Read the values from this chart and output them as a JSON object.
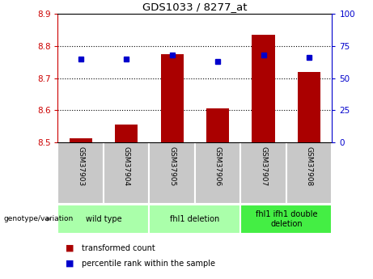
{
  "title": "GDS1033 / 8277_at",
  "samples": [
    "GSM37903",
    "GSM37904",
    "GSM37905",
    "GSM37906",
    "GSM37907",
    "GSM37908"
  ],
  "transformed_count": [
    8.513,
    8.555,
    8.775,
    8.605,
    8.835,
    8.72
  ],
  "percentile_rank": [
    65,
    65,
    68,
    63,
    68,
    66
  ],
  "ylim_left": [
    8.5,
    8.9
  ],
  "ylim_right": [
    0,
    100
  ],
  "yticks_left": [
    8.5,
    8.6,
    8.7,
    8.8,
    8.9
  ],
  "yticks_right": [
    0,
    25,
    50,
    75,
    100
  ],
  "bar_color": "#aa0000",
  "dot_color": "#0000cc",
  "bar_width": 0.5,
  "axis_color_left": "#cc0000",
  "axis_color_right": "#0000cc",
  "sample_box_color": "#c8c8c8",
  "group_boundaries": [
    {
      "start": 0,
      "end": 1,
      "label": "wild type",
      "color": "#aaffaa"
    },
    {
      "start": 2,
      "end": 3,
      "label": "fhl1 deletion",
      "color": "#aaffaa"
    },
    {
      "start": 4,
      "end": 5,
      "label": "fhl1 ifh1 double\ndeletion",
      "color": "#44ee44"
    }
  ],
  "genotype_label": "genotype/variation",
  "legend_items": [
    {
      "label": "transformed count",
      "color": "#aa0000"
    },
    {
      "label": "percentile rank within the sample",
      "color": "#0000cc"
    }
  ]
}
